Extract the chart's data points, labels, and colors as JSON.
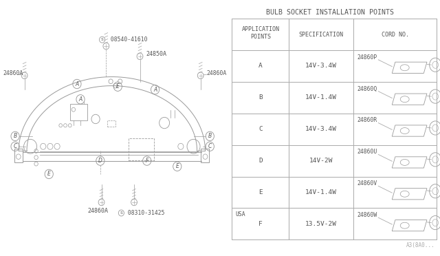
{
  "title": "BULB SOCKET INSTALLATION POINTS",
  "bg_color": "#ffffff",
  "rows": [
    {
      "app": "A",
      "spec": "14V-3.4W",
      "cord": "24860P",
      "usa": false
    },
    {
      "app": "B",
      "spec": "14V-1.4W",
      "cord": "24860Q",
      "usa": false
    },
    {
      "app": "C",
      "spec": "14V-3.4W",
      "cord": "24860R",
      "usa": false
    },
    {
      "app": "D",
      "spec": "14V-2W",
      "cord": "24860U",
      "usa": false
    },
    {
      "app": "E",
      "spec": "14V-1.4W",
      "cord": "24860V",
      "usa": false
    },
    {
      "app": "F",
      "spec": "13.5V-2W",
      "cord": "24860W",
      "usa": true
    }
  ],
  "lc": "#999999",
  "tc": "#555555",
  "label_08540": "Ⓢ 08540-41610",
  "label_24850": "24850A",
  "label_24860a_left": "24860A",
  "label_24860a_right": "24860A",
  "label_24860a_bot": "24860A",
  "label_08310": "Ⓢ 08310-31425",
  "part_no": "A3(8A0..."
}
